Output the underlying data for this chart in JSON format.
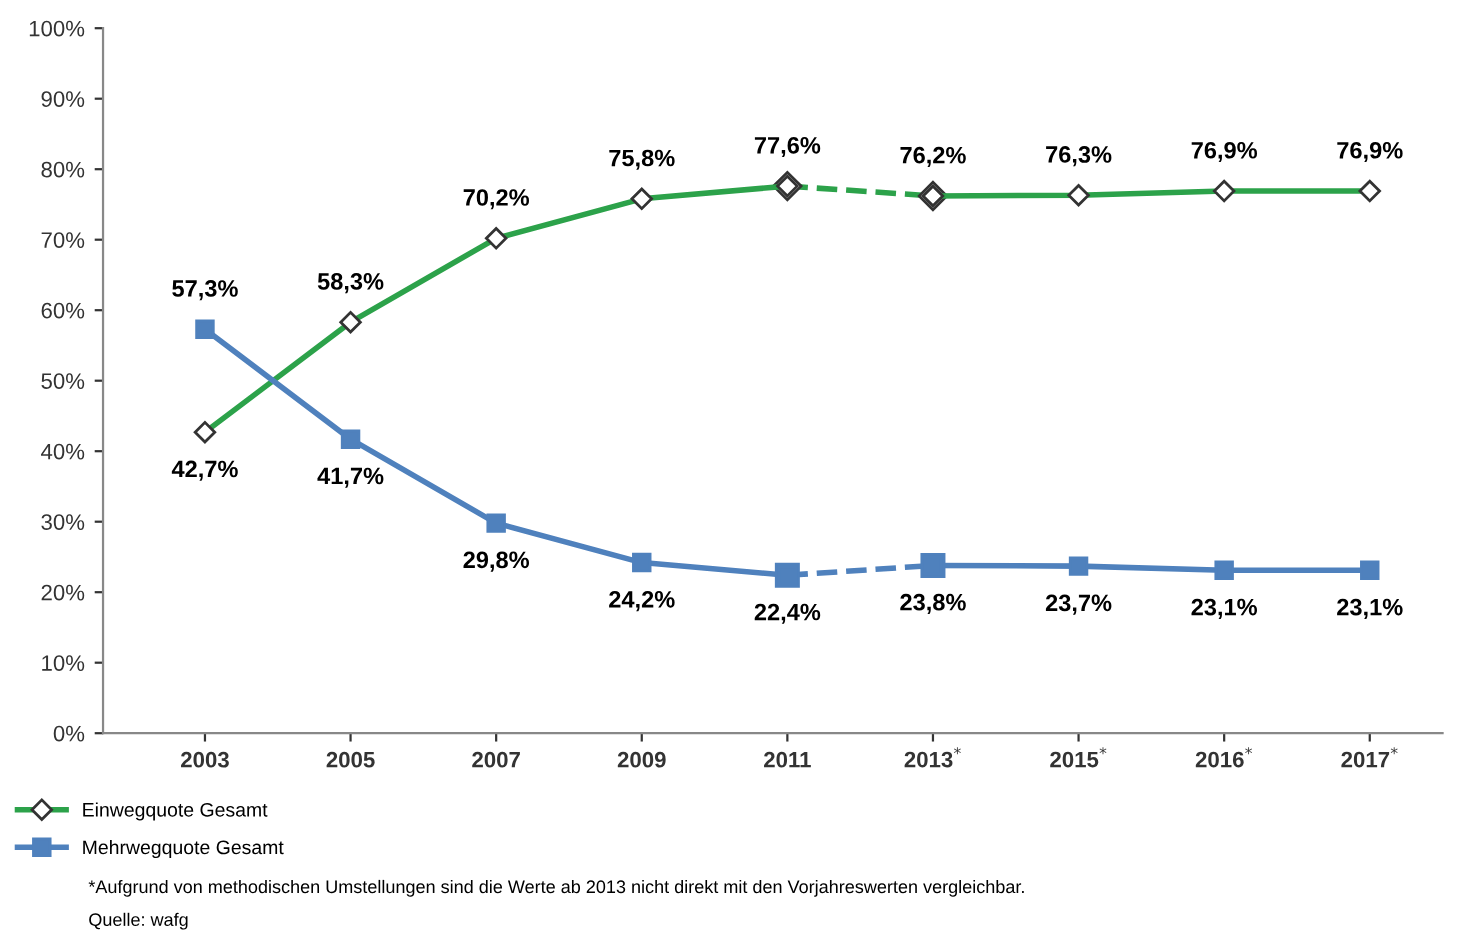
{
  "chart_data": {
    "type": "line",
    "categories": [
      "2003",
      "2005",
      "2007",
      "2009",
      "2011",
      "2013$^{*}$",
      "2015$^{*}$",
      "2016$^{*}$",
      "2017$^{*}$"
    ],
    "series": [
      {
        "name": "Einwegquote Gesamt",
        "color": "#2ca24a",
        "marker": "diamond",
        "line_style": "solid",
        "values": [
          42.7,
          58.3,
          70.2,
          75.8,
          77.6,
          null,
          null,
          null,
          null
        ],
        "value_labels": [
          "42,7%",
          "58,3%",
          "70,2%",
          "75,8%",
          "77,6%",
          null,
          null,
          null,
          null
        ]
      },
      {
        "color": "#2ca24a",
        "marker": "diamond",
        "line_style": "dashed",
        "values": [
          null,
          null,
          null,
          null,
          77.6,
          76.2,
          null,
          null,
          null
        ]
      },
      {
        "color": "#2ca24a",
        "marker": "diamond",
        "line_style": "solid",
        "values": [
          null,
          null,
          null,
          null,
          null,
          76.2,
          76.3,
          76.9,
          76.9
        ],
        "value_labels": [
          null,
          null,
          null,
          null,
          null,
          "76,2%",
          "76,3%",
          "76,9%",
          "76,9%"
        ]
      },
      {
        "name": "Mehrwegquote Gesamt",
        "color": "#4f81bd",
        "marker": "square",
        "line_style": "solid",
        "values": [
          57.3,
          41.7,
          29.8,
          24.2,
          22.4,
          null,
          null,
          null,
          null
        ],
        "value_labels": [
          "57,3%",
          "41,7%",
          "29,8%",
          "24,2%",
          "22,4%",
          null,
          null,
          null,
          null
        ]
      },
      {
        "color": "#4f81bd",
        "marker": "square",
        "line_style": "dashed",
        "values": [
          null,
          null,
          null,
          null,
          22.4,
          23.8,
          null,
          null,
          null
        ]
      },
      {
        "color": "#4f81bd",
        "marker": "square",
        "line_style": "solid",
        "values": [
          null,
          null,
          null,
          null,
          null,
          23.8,
          23.7,
          23.1,
          23.1
        ],
        "value_labels": [
          null,
          null,
          null,
          null,
          null,
          "23,8%",
          "23,7%",
          "23,1%",
          "23,1%"
        ]
      }
    ],
    "ylim": [
      0,
      100
    ],
    "yticks": [
      {
        "value": 0,
        "label": "0%"
      },
      {
        "value": 10,
        "label": "10%"
      },
      {
        "value": 20,
        "label": "20%"
      },
      {
        "value": 30,
        "label": "30%"
      },
      {
        "value": 40,
        "label": "40%"
      },
      {
        "value": 50,
        "label": "50%"
      },
      {
        "value": 60,
        "label": "60%"
      },
      {
        "value": 70,
        "label": "70%"
      },
      {
        "value": 80,
        "label": "80%"
      },
      {
        "value": 90,
        "label": "90%"
      },
      {
        "value": 100,
        "label": "100%"
      }
    ],
    "grid": false,
    "legend": "bottom left",
    "annotations": [
      "*Aufgrund von methodischen Umstellungen sind die Werte ab 2013 nicht direkt mit den Vorjahreswerten vergleichbar.",
      "Quelle: wafg"
    ]
  }
}
